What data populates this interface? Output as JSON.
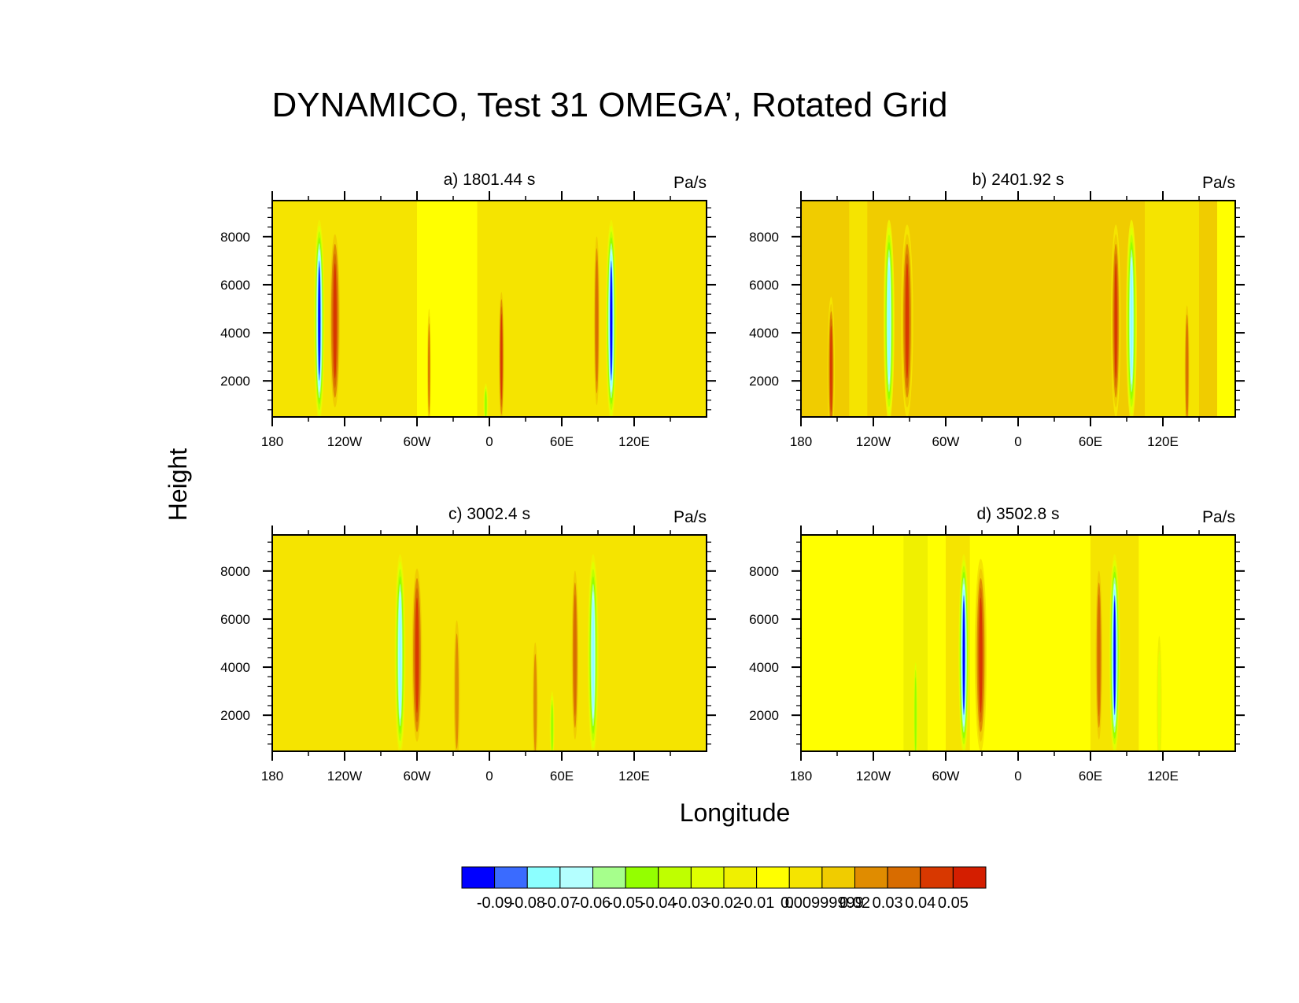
{
  "title": "DYNAMICO, Test 31 OMEGA’, Rotated Grid",
  "xlabel": "Longitude",
  "ylabel": "Height",
  "colors": {
    "background": "#ffffff",
    "axis": "#000000"
  },
  "chart_data": [
    {
      "type": "heatmap",
      "id": "panel-a",
      "title": "a) 1801.44 s",
      "units": "Pa/s",
      "xlim": [
        -180,
        180
      ],
      "ylim": [
        500,
        9500
      ],
      "xticks": [
        -180,
        -120,
        -60,
        0,
        60,
        120
      ],
      "xticklabels": [
        "180",
        "120W",
        "60W",
        "0",
        "60E",
        "120E"
      ],
      "yticks": [
        2000,
        4000,
        6000,
        8000
      ],
      "yticklabels": [
        "2000",
        "4000",
        "6000",
        "8000"
      ],
      "base_level": 0.01,
      "regions": [
        {
          "x0": -180,
          "x1": -35,
          "level": 0.01
        },
        {
          "x0": -60,
          "x1": -10,
          "level": 0.0
        },
        {
          "x0": -10,
          "x1": 180,
          "level": 0.01
        }
      ],
      "features": [
        {
          "lon": -141,
          "peak": -0.09,
          "width_deg": 9,
          "center_z": 4500,
          "half_z": 4200
        },
        {
          "lon": -128,
          "peak": 0.05,
          "width_deg": 10,
          "center_z": 4500,
          "half_z": 4000
        },
        {
          "lon": 10,
          "peak": 0.05,
          "width_deg": 5,
          "center_z": 3000,
          "half_z": 3000
        },
        {
          "lon": -50,
          "peak": 0.04,
          "width_deg": 3,
          "center_z": 2500,
          "half_z": 2500
        },
        {
          "lon": -3,
          "peak": -0.04,
          "width_deg": 4,
          "center_z": 1000,
          "half_z": 900
        },
        {
          "lon": 89,
          "peak": 0.04,
          "width_deg": 6,
          "center_z": 4500,
          "half_z": 4000
        },
        {
          "lon": 101,
          "peak": -0.09,
          "width_deg": 9,
          "center_z": 4500,
          "half_z": 4200
        }
      ]
    },
    {
      "type": "heatmap",
      "id": "panel-b",
      "title": "b) 2401.92 s",
      "units": "Pa/s",
      "xlim": [
        -180,
        180
      ],
      "ylim": [
        500,
        9500
      ],
      "xticks": [
        -180,
        -120,
        -60,
        0,
        60,
        120
      ],
      "xticklabels": [
        "180",
        "120W",
        "60W",
        "0",
        "60E",
        "120E"
      ],
      "yticks": [
        2000,
        4000,
        6000,
        8000
      ],
      "yticklabels": [
        "2000",
        "4000",
        "6000",
        "8000"
      ],
      "base_level": 0.02,
      "regions": [
        {
          "x0": -180,
          "x1": 180,
          "level": 0.02
        },
        {
          "x0": -140,
          "x1": -125,
          "level": 0.01
        },
        {
          "x0": 105,
          "x1": 150,
          "level": 0.01
        },
        {
          "x0": 165,
          "x1": 180,
          "level": 0.0
        }
      ],
      "features": [
        {
          "lon": -155,
          "peak": 0.05,
          "width_deg": 6,
          "center_z": 2500,
          "half_z": 3000
        },
        {
          "lon": -107,
          "peak": -0.07,
          "width_deg": 9,
          "center_z": 4500,
          "half_z": 4200
        },
        {
          "lon": -92,
          "peak": 0.05,
          "width_deg": 10,
          "center_z": 4500,
          "half_z": 4000
        },
        {
          "lon": 81,
          "peak": 0.05,
          "width_deg": 8,
          "center_z": 4500,
          "half_z": 4000
        },
        {
          "lon": 94,
          "peak": -0.07,
          "width_deg": 9,
          "center_z": 4500,
          "half_z": 4200
        },
        {
          "lon": 140,
          "peak": 0.04,
          "width_deg": 5,
          "center_z": 2500,
          "half_z": 3000
        }
      ]
    },
    {
      "type": "heatmap",
      "id": "panel-c",
      "title": "c) 3002.4 s",
      "units": "Pa/s",
      "xlim": [
        -180,
        180
      ],
      "ylim": [
        500,
        9500
      ],
      "xticks": [
        -180,
        -120,
        -60,
        0,
        60,
        120
      ],
      "xticklabels": [
        "180",
        "120W",
        "60W",
        "0",
        "60E",
        "120E"
      ],
      "yticks": [
        2000,
        4000,
        6000,
        8000
      ],
      "yticklabels": [
        "2000",
        "4000",
        "6000",
        "8000"
      ],
      "base_level": 0.01,
      "regions": [
        {
          "x0": -180,
          "x1": 180,
          "level": 0.01
        }
      ],
      "features": [
        {
          "lon": -74,
          "peak": -0.07,
          "width_deg": 9,
          "center_z": 4500,
          "half_z": 4200
        },
        {
          "lon": -60,
          "peak": 0.05,
          "width_deg": 10,
          "center_z": 4500,
          "half_z": 4000
        },
        {
          "lon": -27,
          "peak": 0.03,
          "width_deg": 7,
          "center_z": 3000,
          "half_z": 3500
        },
        {
          "lon": 38,
          "peak": 0.03,
          "width_deg": 6,
          "center_z": 2500,
          "half_z": 3000
        },
        {
          "lon": 52,
          "peak": -0.04,
          "width_deg": 4,
          "center_z": 1500,
          "half_z": 1500
        },
        {
          "lon": 71,
          "peak": 0.04,
          "width_deg": 7,
          "center_z": 4500,
          "half_z": 4000
        },
        {
          "lon": 86,
          "peak": -0.07,
          "width_deg": 9,
          "center_z": 4500,
          "half_z": 4200
        }
      ]
    },
    {
      "type": "heatmap",
      "id": "panel-d",
      "title": "d) 3502.8 s",
      "units": "Pa/s",
      "xlim": [
        -180,
        180
      ],
      "ylim": [
        500,
        9500
      ],
      "xticks": [
        -180,
        -120,
        -60,
        0,
        60,
        120
      ],
      "xticklabels": [
        "180",
        "120W",
        "60W",
        "0",
        "60E",
        "120E"
      ],
      "yticks": [
        2000,
        4000,
        6000,
        8000
      ],
      "yticklabels": [
        "2000",
        "4000",
        "6000",
        "8000"
      ],
      "base_level": 0.0,
      "regions": [
        {
          "x0": -180,
          "x1": 180,
          "level": 0.0
        },
        {
          "x0": -95,
          "x1": -75,
          "level": -0.01
        },
        {
          "x0": -60,
          "x1": -40,
          "level": 0.01
        },
        {
          "x0": 60,
          "x1": 100,
          "level": 0.01
        }
      ],
      "features": [
        {
          "lon": -85,
          "peak": -0.04,
          "width_deg": 4,
          "center_z": 2000,
          "half_z": 2500
        },
        {
          "lon": -45,
          "peak": -0.09,
          "width_deg": 9,
          "center_z": 4500,
          "half_z": 4200
        },
        {
          "lon": -31,
          "peak": 0.05,
          "width_deg": 10,
          "center_z": 4500,
          "half_z": 4000
        },
        {
          "lon": 67,
          "peak": 0.04,
          "width_deg": 7,
          "center_z": 4500,
          "half_z": 4000
        },
        {
          "lon": 80,
          "peak": -0.09,
          "width_deg": 9,
          "center_z": 4500,
          "half_z": 4200
        },
        {
          "lon": 117,
          "peak": -0.02,
          "width_deg": 4,
          "center_z": 2500,
          "half_z": 2800
        }
      ]
    }
  ],
  "colorbar": {
    "colors": [
      "#0000ff",
      "#3a6bff",
      "#8cffff",
      "#b4ffff",
      "#a6ff8c",
      "#94ff00",
      "#bfff00",
      "#e0ff00",
      "#f0f000",
      "#ffff00",
      "#f5e400",
      "#f0cc00",
      "#e08c00",
      "#d86c00",
      "#d83800",
      "#d41e00"
    ],
    "bounds": [
      -0.095,
      -0.085,
      -0.075,
      -0.065,
      -0.055,
      -0.045,
      -0.035,
      -0.025,
      -0.015,
      -0.005,
      0.005,
      0.015,
      0.025,
      0.035,
      0.045,
      0.055,
      0.065
    ],
    "labels": [
      "-0.09",
      "-0.08",
      "-0.07",
      "-0.06",
      "-0.05",
      "-0.04",
      "-0.03",
      "-0.02",
      "-0.01",
      "0",
      "0.00999999",
      "0.02",
      "0.03",
      "0.04",
      "0.05"
    ]
  }
}
